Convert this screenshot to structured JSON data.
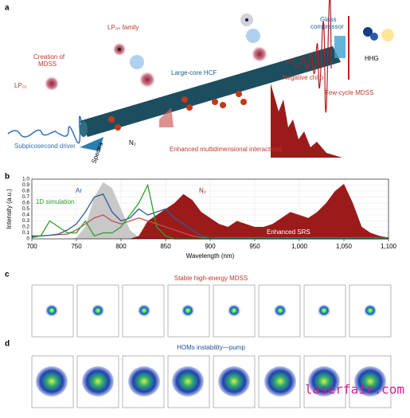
{
  "panel_a": {
    "letter": "a",
    "lp_family": "LP₀ₙ family",
    "creation": [
      "Creation of",
      "MDSS"
    ],
    "lp01": "LP₀₁",
    "fiber": "Large-core HCF",
    "driver": "Subpicosecond driver",
    "spectra": "Spectra",
    "n2": "N₂",
    "interactions": "Enhanced multidimensional interactions",
    "chirp": "Negative chirp",
    "compressor": [
      "Glass",
      "compressor"
    ],
    "hhg": "HHG",
    "few_cycle": "Few-cycle MDSS"
  },
  "chart_data": {
    "type": "line",
    "letter": "b",
    "xlabel": "Wavelength (nm)",
    "ylabel": "Intensity (a.u.)",
    "x": [
      700,
      710,
      720,
      730,
      740,
      750,
      760,
      770,
      780,
      790,
      800,
      810,
      820,
      830,
      840,
      850,
      860,
      870,
      880,
      890,
      900,
      910,
      920,
      930,
      940,
      950,
      960,
      970,
      980,
      990,
      1000,
      1010,
      1020,
      1030,
      1040,
      1050,
      1060,
      1070,
      1080,
      1090,
      1100
    ],
    "series": [
      {
        "color": "#c8c8c8",
        "fill": true,
        "values": [
          0,
          0,
          0,
          0,
          0,
          0.02,
          0.2,
          0.7,
          0.95,
          0.85,
          0.5,
          0.15,
          0.02,
          0,
          0,
          0,
          0,
          0,
          0,
          0,
          0,
          0,
          0,
          0,
          0,
          0,
          0,
          0,
          0,
          0,
          0,
          0,
          0,
          0,
          0,
          0,
          0,
          0,
          0,
          0,
          0
        ]
      },
      {
        "name": "N₂",
        "color": "#9b1b1b",
        "fill": true,
        "values": [
          0,
          0,
          0,
          0,
          0,
          0,
          0,
          0,
          0,
          0,
          0,
          0,
          0.05,
          0.3,
          0.4,
          0.5,
          0.6,
          0.75,
          0.65,
          0.45,
          0.35,
          0.25,
          0.2,
          0.3,
          0.25,
          0.2,
          0.2,
          0.25,
          0.35,
          0.45,
          0.4,
          0.35,
          0.45,
          0.6,
          0.8,
          0.92,
          0.6,
          0.2,
          0.1,
          0.05,
          0.02
        ]
      },
      {
        "color": "#c0504d",
        "fill": false,
        "values": [
          0.05,
          0.05,
          0.06,
          0.07,
          0.08,
          0.15,
          0.25,
          0.35,
          0.4,
          0.3,
          0.25,
          0.3,
          0.35,
          0.3,
          0.25,
          0.2,
          0.15,
          0.1,
          0.05,
          0.02,
          0.02,
          0.02,
          0.02,
          0.02,
          0.02,
          0.02,
          0.02,
          0.02,
          0.02,
          0.02,
          0.02,
          0.02,
          0.02,
          0.02,
          0.02,
          0.02,
          0.02,
          0.02,
          0.02,
          0.02,
          0.02
        ]
      },
      {
        "name": "Ar",
        "color": "#2e5c9a",
        "fill": false,
        "values": [
          0.04,
          0.05,
          0.06,
          0.08,
          0.15,
          0.25,
          0.45,
          0.7,
          0.75,
          0.45,
          0.3,
          0.35,
          0.5,
          0.4,
          0.45,
          0.5,
          0.35,
          0.25,
          0.15,
          0.05,
          0.02,
          0.01,
          0.01,
          0.01,
          0.01,
          0.01,
          0.01,
          0.01,
          0.01,
          0.01,
          0.01,
          0.01,
          0.01,
          0.01,
          0.01,
          0.01,
          0.01,
          0.01,
          0.01,
          0.01,
          0.01
        ]
      },
      {
        "name": "1D simulation",
        "color": "#2ca02c",
        "fill": false,
        "values": [
          0.02,
          0.05,
          0.3,
          0.2,
          0.1,
          0.1,
          0.3,
          0.05,
          0.1,
          0.1,
          0.2,
          0.4,
          0.6,
          0.9,
          0.2,
          0.05,
          0,
          0,
          0,
          0,
          0,
          0,
          0,
          0,
          0,
          0,
          0,
          0,
          0,
          0,
          0,
          0,
          0,
          0,
          0,
          0,
          0,
          0,
          0,
          0,
          0
        ]
      }
    ],
    "annotation": "Enhanced SRS",
    "xlim": [
      700,
      1100
    ],
    "xticks": [
      700,
      750,
      800,
      850,
      900,
      950,
      {
        "value": 1000,
        "label": "1,000"
      },
      {
        "value": 1050,
        "label": "1,050"
      },
      {
        "value": 1100,
        "label": "1,100"
      }
    ],
    "ylim": [
      0,
      1
    ],
    "yticks": [
      0,
      0.1,
      0.2,
      0.3,
      0.4,
      0.5,
      0.6,
      0.7,
      0.8,
      0.9,
      {
        "value": 1,
        "label": "1.0"
      }
    ],
    "grid": true
  },
  "panel_c": {
    "letter": "c",
    "title": "Stable high-energy MDSS"
  },
  "panel_d": {
    "letter": "d",
    "title": "HOMs instability—pump"
  },
  "watermark": "laserfair.com"
}
